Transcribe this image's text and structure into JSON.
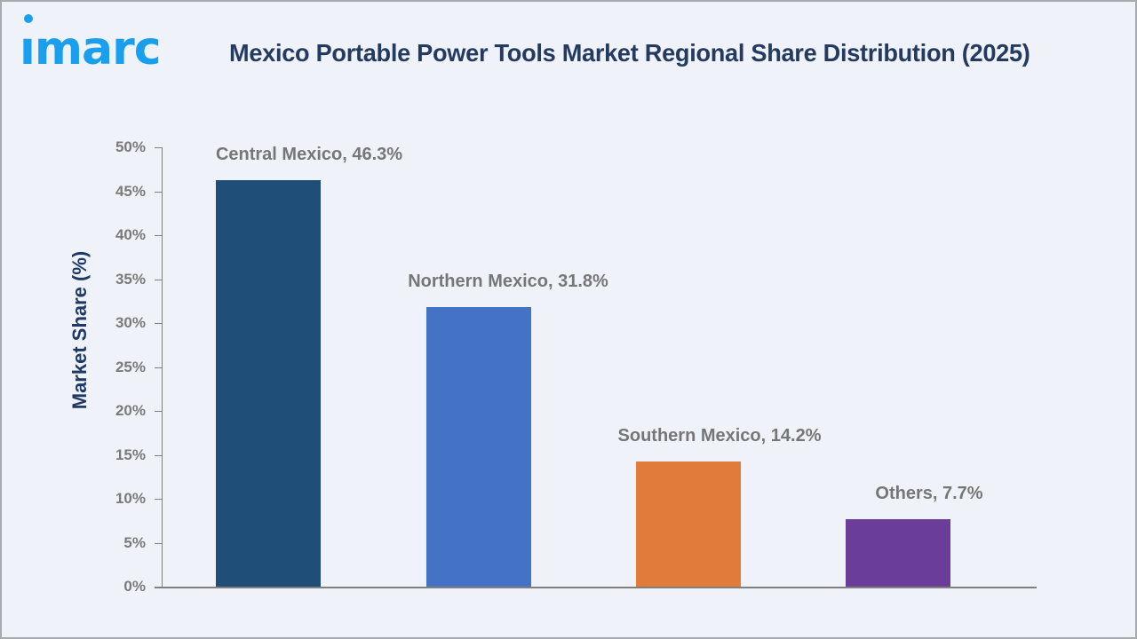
{
  "brand": {
    "logo_text": "imarc",
    "logo_color": "#1a9fee"
  },
  "header": {
    "title": "Mexico Portable Power Tools Market Regional Share Distribution (2025)"
  },
  "chart_data": {
    "type": "bar",
    "title": "Mexico Portable Power Tools Market Regional Share Distribution (2025)",
    "xlabel": "",
    "ylabel": "Market Share (%)",
    "ylim": [
      0,
      50
    ],
    "yticks": [
      "0%",
      "5%",
      "10%",
      "15%",
      "20%",
      "25%",
      "30%",
      "35%",
      "40%",
      "45%",
      "50%"
    ],
    "grid": false,
    "legend": null,
    "categories": [
      "Central Mexico",
      "Northern Mexico",
      "Southern Mexico",
      "Others"
    ],
    "values": [
      46.3,
      31.8,
      14.2,
      7.7
    ],
    "data_labels": [
      "Central Mexico, 46.3%",
      "Northern Mexico, 31.8%",
      "Southern Mexico, 14.2%",
      "Others, 7.7%"
    ],
    "colors": [
      "#1f4e79",
      "#4472c4",
      "#e07b39",
      "#6a3d9a"
    ]
  }
}
